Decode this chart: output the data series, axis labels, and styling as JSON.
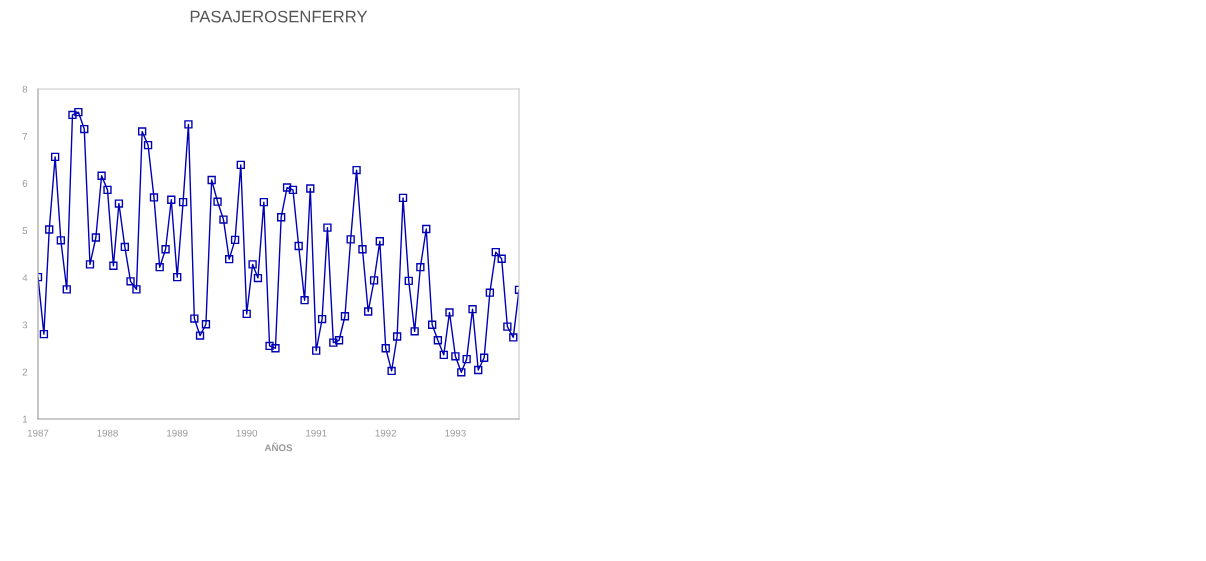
{
  "chart_data": {
    "type": "line",
    "title": "PASAJEROSENFERRY",
    "xlabel": "AÑOS",
    "x": [
      "1987-01",
      "1987-02",
      "1987-03",
      "1987-04",
      "1987-05",
      "1987-06",
      "1987-07",
      "1987-08",
      "1987-09",
      "1987-10",
      "1987-11",
      "1987-12",
      "1988-01",
      "1988-02",
      "1988-03",
      "1988-04",
      "1988-05",
      "1988-06",
      "1988-07",
      "1988-08",
      "1988-09",
      "1988-10",
      "1988-11",
      "1988-12",
      "1989-01",
      "1989-02",
      "1989-03",
      "1989-04",
      "1989-05",
      "1989-06",
      "1989-07",
      "1989-08",
      "1989-09",
      "1989-10",
      "1989-11",
      "1989-12",
      "1990-01",
      "1990-02",
      "1990-03",
      "1990-04",
      "1990-05",
      "1990-06",
      "1990-07",
      "1990-08",
      "1990-09",
      "1990-10",
      "1990-11",
      "1990-12",
      "1991-01",
      "1991-02",
      "1991-03",
      "1991-04",
      "1991-05",
      "1991-06",
      "1991-07",
      "1991-08",
      "1991-09",
      "1991-10",
      "1991-11",
      "1991-12",
      "1992-01",
      "1992-02",
      "1992-03",
      "1992-04",
      "1992-05",
      "1992-06",
      "1992-07",
      "1992-08",
      "1992-09",
      "1992-10",
      "1992-11",
      "1992-12",
      "1993-01",
      "1993-02",
      "1993-03",
      "1993-04",
      "1993-05",
      "1993-06",
      "1993-07",
      "1993-08",
      "1993-09",
      "1993-10",
      "1993-11",
      "1993-12"
    ],
    "series": [
      {
        "color": "#0000b4",
        "values": [
          4.01,
          2.8,
          5.02,
          6.56,
          4.79,
          3.75,
          7.45,
          7.51,
          7.15,
          4.28,
          4.85,
          6.16,
          5.86,
          4.25,
          5.57,
          4.65,
          3.92,
          3.75,
          7.1,
          6.81,
          5.7,
          4.22,
          4.6,
          5.65,
          4.01,
          5.6,
          7.25,
          3.13,
          2.77,
          3.01,
          6.07,
          5.61,
          5.23,
          4.39,
          4.8,
          6.39,
          3.23,
          4.28,
          3.99,
          5.6,
          2.55,
          2.5,
          5.28,
          5.91,
          5.86,
          4.67,
          3.52,
          5.89,
          2.45,
          3.12,
          5.06,
          2.62,
          2.67,
          3.18,
          4.81,
          6.28,
          4.6,
          3.28,
          3.94,
          4.77,
          2.5,
          2.02,
          2.75,
          5.69,
          3.93,
          2.86,
          4.22,
          5.03,
          3.0,
          2.67,
          2.36,
          3.26,
          2.33,
          1.99,
          2.27,
          3.33,
          2.04,
          2.3,
          3.68,
          4.54,
          4.4,
          2.96,
          2.73,
          3.74
        ]
      }
    ],
    "xlim": [
      "1987-01",
      "1993-12"
    ],
    "xticks": [
      "1987",
      "1988",
      "1989",
      "1990",
      "1991",
      "1992",
      "1993"
    ],
    "ylim": [
      1,
      8
    ],
    "yticks": [
      1,
      2,
      3,
      4,
      5,
      6,
      7,
      8
    ],
    "marker": "square",
    "line_style": "solid",
    "grid": false,
    "legend": false
  }
}
